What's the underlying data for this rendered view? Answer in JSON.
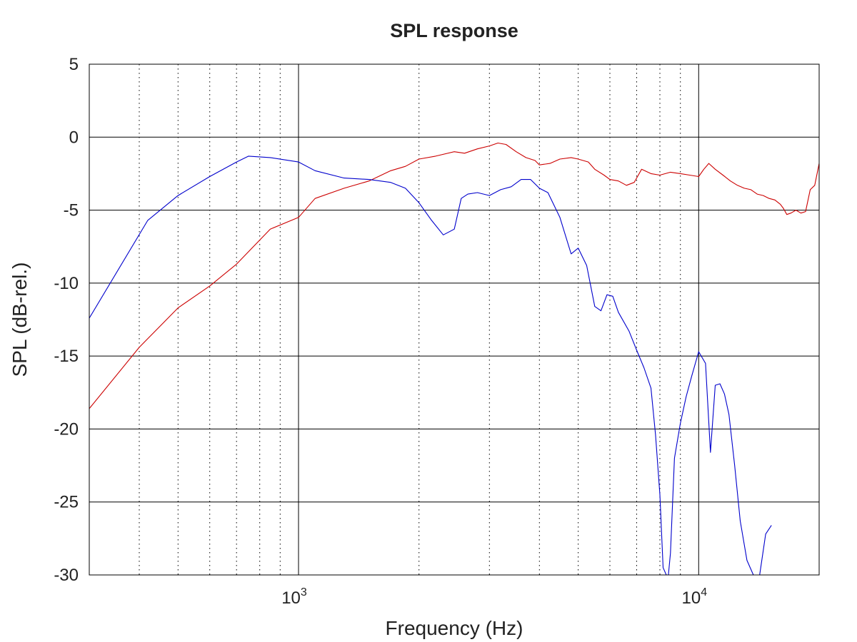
{
  "chart_data": {
    "type": "line",
    "title": "SPL response",
    "xlabel": "Frequency (Hz)",
    "ylabel": "SPL (dB-rel.)",
    "x_scale": "log",
    "xlim": [
      300,
      20000
    ],
    "ylim": [
      -30,
      5
    ],
    "x_ticks": [
      {
        "value": 1000,
        "base": "10",
        "exponent": "3"
      },
      {
        "value": 10000,
        "base": "10",
        "exponent": "4"
      }
    ],
    "x_minor_ticks": [
      400,
      500,
      600,
      700,
      800,
      900,
      2000,
      3000,
      4000,
      5000,
      6000,
      7000,
      8000,
      9000
    ],
    "y_ticks": [
      {
        "value": 5,
        "label": "5"
      },
      {
        "value": 0,
        "label": "0"
      },
      {
        "value": -5,
        "label": "-5"
      },
      {
        "value": -10,
        "label": "-10"
      },
      {
        "value": -15,
        "label": "-15"
      },
      {
        "value": -20,
        "label": "-20"
      },
      {
        "value": -25,
        "label": "-25"
      },
      {
        "value": -30,
        "label": "-30"
      }
    ],
    "grid": true,
    "series": [
      {
        "color": "#cc0000",
        "x": [
          300,
          400,
          500,
          600,
          700,
          850,
          1000,
          1100,
          1300,
          1500,
          1700,
          1850,
          2000,
          2200,
          2450,
          2600,
          2800,
          3000,
          3150,
          3300,
          3500,
          3700,
          3900,
          4000,
          4250,
          4500,
          4800,
          5000,
          5300,
          5500,
          5800,
          6000,
          6300,
          6600,
          6900,
          7200,
          7600,
          8000,
          8500,
          9000,
          9500,
          10000,
          10300,
          10600,
          11000,
          11500,
          12000,
          12500,
          13000,
          13500,
          14000,
          14500,
          15000,
          15500,
          16000,
          16300,
          16600,
          17000,
          17500,
          18000,
          18500,
          19000,
          19500,
          20000
        ],
        "y": [
          -18.6,
          -14.4,
          -11.7,
          -10.2,
          -8.7,
          -6.3,
          -5.5,
          -4.2,
          -3.5,
          -3.0,
          -2.3,
          -2.0,
          -1.5,
          -1.3,
          -1.0,
          -1.1,
          -0.8,
          -0.6,
          -0.4,
          -0.5,
          -1.0,
          -1.4,
          -1.6,
          -1.9,
          -1.8,
          -1.5,
          -1.4,
          -1.5,
          -1.7,
          -2.2,
          -2.6,
          -2.9,
          -3.0,
          -3.3,
          -3.1,
          -2.2,
          -2.5,
          -2.6,
          -2.4,
          -2.5,
          -2.6,
          -2.7,
          -2.2,
          -1.8,
          -2.2,
          -2.6,
          -3.0,
          -3.3,
          -3.5,
          -3.6,
          -3.9,
          -4.0,
          -4.2,
          -4.3,
          -4.6,
          -4.9,
          -5.3,
          -5.2,
          -5.0,
          -5.2,
          -5.1,
          -3.6,
          -3.3,
          -1.8
        ]
      },
      {
        "color": "#0000cc",
        "x": [
          300,
          420,
          500,
          600,
          700,
          750,
          850,
          1000,
          1100,
          1300,
          1500,
          1700,
          1850,
          2000,
          2150,
          2300,
          2450,
          2550,
          2650,
          2800,
          3000,
          3200,
          3400,
          3600,
          3800,
          4000,
          4200,
          4500,
          4800,
          5000,
          5250,
          5500,
          5700,
          5900,
          6100,
          6300,
          6700,
          7000,
          7300,
          7600,
          7800,
          8000,
          8150,
          8300,
          8400,
          8500,
          8700,
          9000,
          9300,
          9600,
          10000,
          10400,
          10700,
          11000,
          11300,
          11600,
          11900,
          12300,
          12700,
          13200,
          13700,
          14200,
          14700,
          15200
        ],
        "y": [
          -12.4,
          -5.7,
          -4.0,
          -2.7,
          -1.7,
          -1.3,
          -1.4,
          -1.7,
          -2.3,
          -2.8,
          -2.9,
          -3.1,
          -3.5,
          -4.5,
          -5.7,
          -6.7,
          -6.3,
          -4.2,
          -3.9,
          -3.8,
          -4.0,
          -3.6,
          -3.4,
          -2.9,
          -2.9,
          -3.5,
          -3.8,
          -5.5,
          -8.0,
          -7.6,
          -8.8,
          -11.6,
          -11.9,
          -10.8,
          -10.9,
          -12.0,
          -13.3,
          -14.6,
          -15.8,
          -17.2,
          -20.4,
          -24.5,
          -29.5,
          -30.0,
          -30.0,
          -28.5,
          -22.0,
          -19.6,
          -17.8,
          -16.4,
          -14.7,
          -15.5,
          -21.6,
          -17.0,
          -16.9,
          -17.6,
          -19.0,
          -22.5,
          -26.3,
          -29.0,
          -30.0,
          -30.0,
          -27.2,
          -26.6
        ]
      }
    ]
  }
}
